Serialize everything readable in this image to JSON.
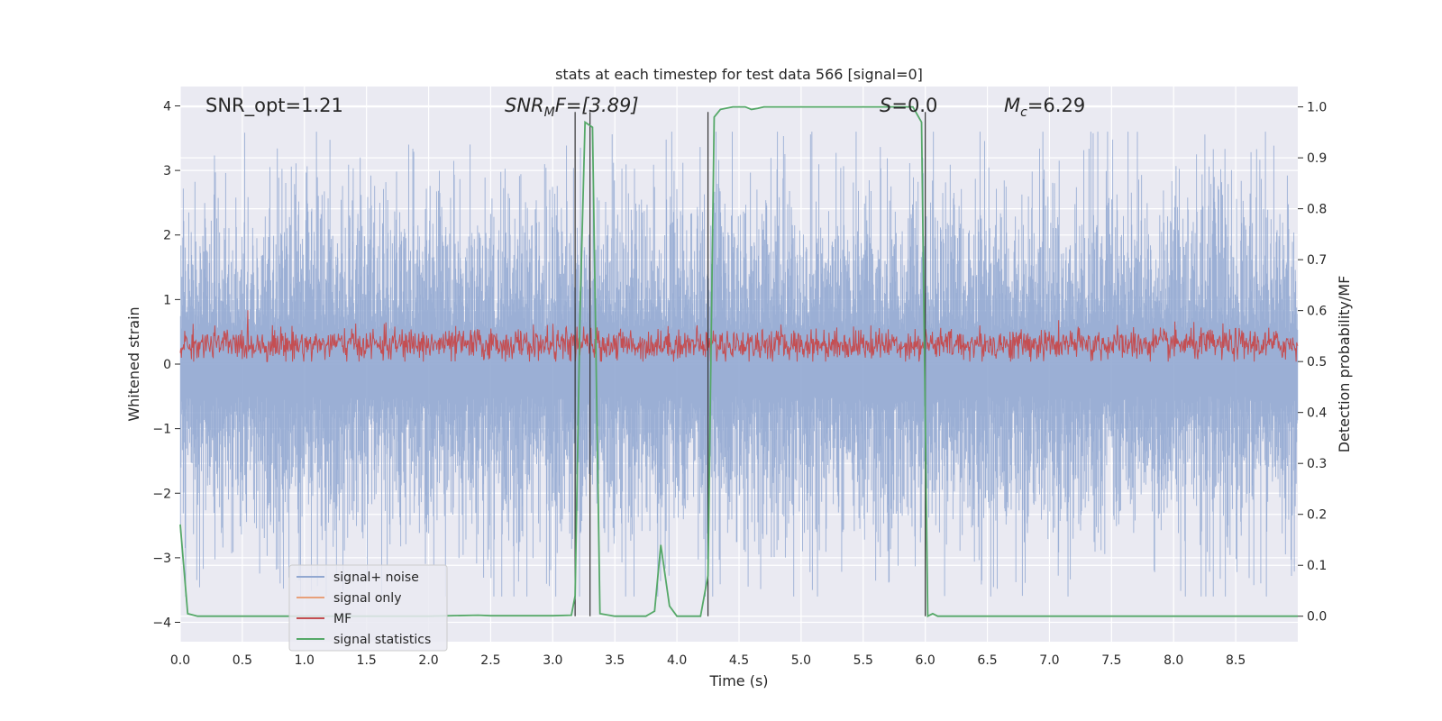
{
  "chart_data": {
    "type": "line",
    "title": "stats at each timestep for test data 566 [signal=0]",
    "xlabel": "Time (s)",
    "ylabel_left": "Whitened strain",
    "ylabel_right": "Detection probability/MF",
    "xlim": [
      0.0,
      9.0
    ],
    "ylim_left": [
      -4.3,
      4.3
    ],
    "ylim_right": [
      -0.05,
      1.04
    ],
    "x_ticks": [
      "0.0",
      "0.5",
      "1.0",
      "1.5",
      "2.0",
      "2.5",
      "3.0",
      "3.5",
      "4.0",
      "4.5",
      "5.0",
      "5.5",
      "6.0",
      "6.5",
      "7.0",
      "7.5",
      "8.0",
      "8.5"
    ],
    "y_ticks_left": [
      "4",
      "3",
      "2",
      "1",
      "0",
      "−1",
      "−2",
      "−3",
      "−4"
    ],
    "y_ticks_right": [
      "1.0",
      "0.9",
      "0.8",
      "0.7",
      "0.6",
      "0.5",
      "0.4",
      "0.3",
      "0.2",
      "0.1",
      "0.0"
    ],
    "grid": true,
    "legend_position": "lower-left",
    "annotations": {
      "snr_opt": "SNR_opt=1.21",
      "snr_mf_main": "SNR",
      "snr_mf_sub": "M",
      "snr_mf_rest": "F=[3.89]",
      "s_italic": "S",
      "s_rest": "=0.0",
      "mc_main": "M",
      "mc_sub": "c",
      "mc_rest": "=6.29"
    },
    "series": [
      {
        "name": "signal+ noise",
        "color": "#92a8d1",
        "noise_amplitude_range": [
          -3.5,
          3.5
        ]
      },
      {
        "name": "signal only",
        "color": "#e8a07a",
        "values": "flat zero"
      },
      {
        "name": "MF",
        "color": "#c44e52",
        "typical_range": [
          0.0,
          0.75
        ]
      },
      {
        "name": "signal statistics",
        "color": "#55a868",
        "x": [
          0.0,
          0.06,
          0.14,
          1.0,
          2.0,
          2.4,
          2.5,
          3.0,
          3.15,
          3.18,
          3.22,
          3.26,
          3.32,
          3.38,
          3.5,
          3.75,
          3.82,
          3.87,
          3.94,
          4.0,
          4.19,
          4.25,
          4.3,
          4.35,
          4.45,
          4.5,
          4.55,
          4.6,
          4.65,
          4.7,
          4.75,
          4.8,
          5.0,
          5.5,
          5.9,
          5.97,
          6.02,
          6.06,
          6.1,
          6.2,
          7.0,
          8.0,
          9.0
        ],
        "values": [
          0.18,
          0.005,
          0.0,
          0.0,
          0.0,
          0.002,
          0.001,
          0.001,
          0.002,
          0.04,
          0.6,
          0.97,
          0.96,
          0.005,
          0.0,
          0.0,
          0.01,
          0.14,
          0.02,
          0.0,
          0.0,
          0.08,
          0.98,
          0.995,
          1.0,
          1.0,
          1.0,
          0.995,
          0.997,
          1.0,
          1.0,
          1.0,
          1.0,
          1.0,
          1.0,
          0.97,
          0.0,
          0.005,
          0.0,
          0.0,
          0.0,
          0.0,
          0.0
        ]
      }
    ],
    "vertical_lines_x": [
      3.18,
      3.3,
      4.25,
      6.0
    ]
  }
}
